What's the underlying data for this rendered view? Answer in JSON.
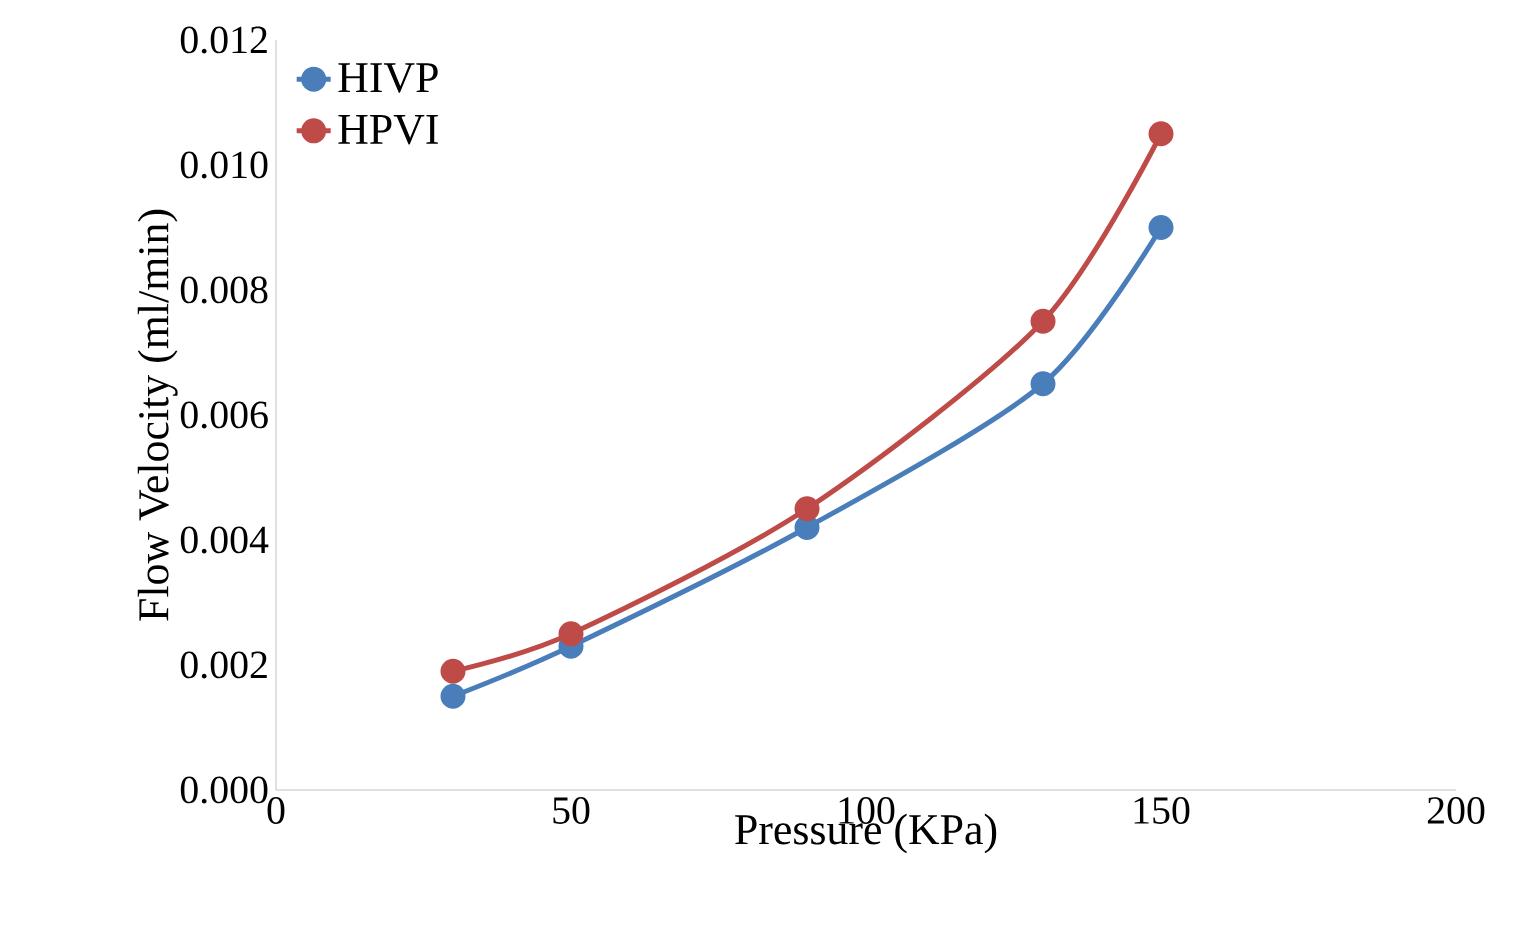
{
  "chart_data": {
    "type": "line",
    "xlabel": "Pressure (KPa)",
    "ylabel": "Flow Velocity (ml/min)",
    "xlim": [
      0,
      200
    ],
    "xticks": [
      0,
      50,
      100,
      150,
      200
    ],
    "ylim": [
      0,
      0.012
    ],
    "yticks": [
      {
        "value": 0,
        "label": "0.000"
      },
      {
        "value": 0.002,
        "label": "0.002"
      },
      {
        "value": 0.004,
        "label": "0.004"
      },
      {
        "value": 0.006,
        "label": "0.006"
      },
      {
        "value": 0.008,
        "label": "0.008"
      },
      {
        "value": 0.01,
        "label": "0.010"
      },
      {
        "value": 0.012,
        "label": "0.012"
      }
    ],
    "x": [
      30,
      50,
      90,
      130,
      150
    ],
    "series": [
      {
        "name": "HIVP",
        "color": "#4a7ebb",
        "values": [
          0.0015,
          0.0023,
          0.0042,
          0.0065,
          0.009
        ]
      },
      {
        "name": "HPVI",
        "color": "#be4b48",
        "values": [
          0.0019,
          0.0025,
          0.0045,
          0.0075,
          0.0105
        ]
      }
    ],
    "marker": "circle",
    "line_style": "solid",
    "grid": false,
    "legend": "top left"
  }
}
